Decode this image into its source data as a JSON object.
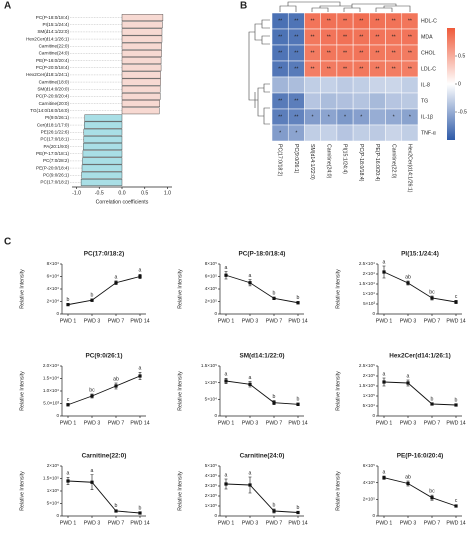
{
  "chart_data": [
    {
      "type": "bar",
      "orientation": "horizontal",
      "panel_label": "A",
      "x_label": "Correlation coefficients",
      "categories": [
        "PC(P-18:0/18:4)",
        "PI(15:1/24:4)",
        "SM(d14:1/22:0)",
        "Hex2Cer(d14:1/26:1)",
        "Carnitine(22:0)",
        "Carnitine(24:0)",
        "PE(P-16:0/20:4)",
        "PC(P-20:0/18:4)",
        "Hex2Cer(d18:1/24:1)",
        "Carnitine(18:0)",
        "SM(d14:0/20:0)",
        "PC(P-20:0/20:4)",
        "Carnitine(20:0)",
        "TG(14:0/16:0/16:0)",
        "PI(9:0/26:1)",
        "Cer(d18:1/17:0)",
        "PE(26:1/22:6)",
        "PC(17:0/18:1)",
        "PA(20:1/9:0)",
        "PE(P-17:0/18:1)",
        "PC(7:0/28:2)",
        "PE(P-20:0/18:4)",
        "PC(9:0/26:1)",
        "PC(17:0/18:2)"
      ],
      "values": [
        0.9,
        0.89,
        0.88,
        0.88,
        0.87,
        0.87,
        0.86,
        0.86,
        0.85,
        0.85,
        0.84,
        0.84,
        0.83,
        0.82,
        -0.82,
        -0.83,
        -0.84,
        -0.84,
        -0.85,
        -0.86,
        -0.87,
        -0.88,
        -0.89,
        -0.9
      ],
      "positive_color": "#f7d9d2",
      "negative_color": "#a9dfe6",
      "xlim": [
        -1.1,
        1.1
      ],
      "xticks": [
        {
          "value": -1,
          "label": "-1.0"
        },
        {
          "value": -0.5,
          "label": "-0.5"
        },
        {
          "value": 0,
          "label": "0.0"
        },
        {
          "value": 0.5,
          "label": "0.5"
        },
        {
          "value": 1,
          "label": "1.0"
        }
      ]
    },
    {
      "type": "heatmap",
      "panel_label": "B",
      "rows": [
        "HDL-C",
        "MDA",
        "CHOL",
        "LDL-C",
        "IL-8",
        "TG",
        "IL-1β",
        "TNF-α"
      ],
      "columns": [
        "PC(17:0/18:2)",
        "PC(9:0/26:1)",
        "SM(d14:1/22:0)",
        "Carnitine(24:0)",
        "PI(15:1/24:4)",
        "PC(P-18:0/18:4)",
        "PE(P-16:0/20:4)",
        "Carnitine(22:0)",
        "Hex2Cer(d14:1/26:1)"
      ],
      "values": [
        [
          -0.86,
          -0.84,
          0.84,
          0.86,
          0.85,
          0.88,
          0.86,
          0.85,
          0.83
        ],
        [
          -0.85,
          -0.83,
          0.82,
          0.84,
          0.86,
          0.85,
          0.84,
          0.83,
          0.84
        ],
        [
          -0.84,
          -0.82,
          0.8,
          0.83,
          0.82,
          0.84,
          0.82,
          0.81,
          0.8
        ],
        [
          -0.83,
          -0.8,
          0.78,
          0.8,
          0.81,
          0.82,
          0.8,
          0.79,
          0.78
        ],
        [
          -0.45,
          -0.4,
          -0.3,
          -0.28,
          -0.32,
          -0.3,
          -0.26,
          -0.25,
          -0.3
        ],
        [
          -0.8,
          -0.78,
          -0.35,
          -0.4,
          -0.38,
          -0.36,
          -0.42,
          -0.35,
          -0.33
        ],
        [
          -0.78,
          -0.75,
          -0.6,
          -0.55,
          -0.62,
          -0.58,
          -0.5,
          -0.52,
          -0.56
        ],
        [
          -0.6,
          -0.55,
          -0.3,
          -0.28,
          -0.35,
          -0.3,
          -0.32,
          -0.26,
          -0.3
        ]
      ],
      "significance": [
        [
          "**",
          "**",
          "**",
          "**",
          "**",
          "**",
          "**",
          "**",
          "**"
        ],
        [
          "**",
          "**",
          "**",
          "**",
          "**",
          "**",
          "**",
          "**",
          "**"
        ],
        [
          "**",
          "**",
          "**",
          "**",
          "**",
          "**",
          "**",
          "**",
          "**"
        ],
        [
          "**",
          "**",
          "**",
          "**",
          "**",
          "**",
          "**",
          "**",
          "**"
        ],
        [
          null,
          null,
          null,
          null,
          null,
          null,
          null,
          null,
          null
        ],
        [
          "**",
          "**",
          null,
          null,
          null,
          null,
          null,
          null,
          null
        ],
        [
          "**",
          "**",
          "*",
          "*",
          "*",
          "*",
          null,
          "*",
          "*"
        ],
        [
          "*",
          "*",
          null,
          null,
          null,
          null,
          null,
          null,
          null
        ]
      ],
      "colormap": [
        "#2e5aa8",
        "#ffffff",
        "#ef5a3a"
      ],
      "clim": [
        -1,
        1
      ],
      "colorbar_ticks": [
        0.5,
        0,
        -0.5
      ]
    },
    {
      "type": "line",
      "panel_label": "C",
      "title": "PC(17:0/18:2)",
      "y_label": "Relative Intensity",
      "color": "#111111",
      "categories": [
        "PWD 1",
        "PWD 3",
        "PWD 7",
        "PWD 14"
      ],
      "values": [
        15000,
        22000,
        50000,
        60000
      ],
      "errors": [
        1500,
        2000,
        3000,
        3500
      ],
      "significance_letters": [
        "b",
        "b",
        "a",
        "a"
      ],
      "ylim": [
        0,
        80000
      ],
      "yticks": [
        0,
        {
          "value": 20000,
          "label": "2×10⁴"
        },
        {
          "value": 40000,
          "label": "4×10⁴"
        },
        {
          "value": 60000,
          "label": "6×10⁴"
        },
        {
          "value": 80000,
          "label": "8×10⁴"
        }
      ]
    },
    {
      "type": "line",
      "title": "PC(P-18:0/18:4)",
      "y_label": "Relative Intensity",
      "color": "#111111",
      "categories": [
        "PWD 1",
        "PWD 3",
        "PWD 7",
        "PWD 14"
      ],
      "values": [
        620000,
        500000,
        250000,
        180000
      ],
      "errors": [
        60000,
        50000,
        20000,
        20000
      ],
      "significance_letters": [
        "a",
        "a",
        "b",
        "b"
      ],
      "ylim": [
        0,
        800000
      ],
      "yticks": [
        0,
        {
          "value": 200000,
          "label": "2×10⁵"
        },
        {
          "value": 400000,
          "label": "4×10⁵"
        },
        {
          "value": 600000,
          "label": "6×10⁵"
        },
        {
          "value": 800000,
          "label": "8×10⁵"
        }
      ]
    },
    {
      "type": "line",
      "title": "PI(15:1/24:4)",
      "y_label": "Relative Intensity",
      "color": "#111111",
      "categories": [
        "PWD 1",
        "PWD 3",
        "PWD 7",
        "PWD 14"
      ],
      "values": [
        21000,
        15500,
        8000,
        6000
      ],
      "errors": [
        3000,
        1000,
        1000,
        800
      ],
      "significance_letters": [
        "a",
        "ab",
        "bc",
        "c"
      ],
      "ylim": [
        0,
        25000
      ],
      "yticks": [
        0,
        {
          "value": 5000,
          "label": "5×10³"
        },
        {
          "value": 10000,
          "label": "1×10⁴"
        },
        {
          "value": 15000,
          "label": "1.5×10⁴"
        },
        {
          "value": 20000,
          "label": "2×10⁴"
        },
        {
          "value": 25000,
          "label": "2.5×10⁴"
        }
      ]
    },
    {
      "type": "line",
      "title": "PC(9:0/26:1)",
      "y_label": "Relative Intensity",
      "color": "#111111",
      "categories": [
        "PWD 1",
        "PWD 3",
        "PWD 7",
        "PWD 14"
      ],
      "values": [
        4500,
        8000,
        12000,
        16000
      ],
      "errors": [
        500,
        800,
        1200,
        1500
      ],
      "significance_letters": [
        "c",
        "bc",
        "ab",
        "a"
      ],
      "ylim": [
        0,
        20000
      ],
      "yticks": [
        0,
        {
          "value": 5000,
          "label": "5.0×10³"
        },
        {
          "value": 10000,
          "label": "1.0×10⁴"
        },
        {
          "value": 15000,
          "label": "1.5×10⁴"
        },
        {
          "value": 20000,
          "label": "2.0×10⁴"
        }
      ]
    },
    {
      "type": "line",
      "title": "SM(d14:1/22:0)",
      "y_label": "Relative Intensity",
      "color": "#111111",
      "categories": [
        "PWD 1",
        "PWD 3",
        "PWD 7",
        "PWD 14"
      ],
      "values": [
        105000,
        95000,
        40000,
        35000
      ],
      "errors": [
        8000,
        8000,
        6000,
        4000
      ],
      "significance_letters": [
        "a",
        "a",
        "b",
        "b"
      ],
      "ylim": [
        0,
        150000
      ],
      "yticks": [
        0,
        {
          "value": 50000,
          "label": "5×10⁴"
        },
        {
          "value": 100000,
          "label": "1×10⁵"
        },
        {
          "value": 150000,
          "label": "1.5×10⁵"
        }
      ]
    },
    {
      "type": "line",
      "title": "Hex2Cer(d14:1/26:1)",
      "y_label": "Relative Intensity",
      "color": "#111111",
      "categories": [
        "PWD 1",
        "PWD 3",
        "PWD 7",
        "PWD 14"
      ],
      "values": [
        170000,
        165000,
        60000,
        55000
      ],
      "errors": [
        20000,
        15000,
        5000,
        5000
      ],
      "significance_letters": [
        "a",
        "a",
        "b",
        "b"
      ],
      "ylim": [
        0,
        250000
      ],
      "yticks": [
        0,
        {
          "value": 50000,
          "label": "5×10⁴"
        },
        {
          "value": 100000,
          "label": "1×10⁵"
        },
        {
          "value": 150000,
          "label": "1.5×10⁵"
        },
        {
          "value": 200000,
          "label": "2×10⁵"
        },
        {
          "value": 250000,
          "label": "2.5×10⁵"
        }
      ]
    },
    {
      "type": "line",
      "title": "Carnitine(22:0)",
      "y_label": "Relative Intensity",
      "color": "#111111",
      "categories": [
        "PWD 1",
        "PWD 3",
        "PWD 7",
        "PWD 14"
      ],
      "values": [
        140000,
        135000,
        20000,
        12000
      ],
      "errors": [
        15000,
        30000,
        5000,
        3000
      ],
      "significance_letters": [
        "a",
        "a",
        "b",
        "b"
      ],
      "ylim": [
        0,
        200000
      ],
      "yticks": [
        0,
        {
          "value": 50000,
          "label": "5×10⁴"
        },
        {
          "value": 100000,
          "label": "1×10⁵"
        },
        {
          "value": 150000,
          "label": "1.5×10⁵"
        },
        {
          "value": 200000,
          "label": "2×10⁵"
        }
      ]
    },
    {
      "type": "line",
      "title": "Carnitine(24:0)",
      "y_label": "Relative Intensity",
      "color": "#111111",
      "categories": [
        "PWD 1",
        "PWD 3",
        "PWD 7",
        "PWD 14"
      ],
      "values": [
        320000,
        310000,
        50000,
        35000
      ],
      "errors": [
        50000,
        80000,
        20000,
        10000
      ],
      "significance_letters": [
        "a",
        "a",
        "b",
        "b"
      ],
      "ylim": [
        0,
        500000
      ],
      "yticks": [
        0,
        {
          "value": 100000,
          "label": "1×10⁵"
        },
        {
          "value": 200000,
          "label": "2×10⁵"
        },
        {
          "value": 300000,
          "label": "3×10⁵"
        },
        {
          "value": 400000,
          "label": "4×10⁵"
        },
        {
          "value": 500000,
          "label": "5×10⁵"
        }
      ]
    },
    {
      "type": "line",
      "title": "PE(P-16:0/20:4)",
      "y_label": "Relative Intensity",
      "color": "#111111",
      "categories": [
        "PWD 1",
        "PWD 3",
        "PWD 7",
        "PWD 14"
      ],
      "values": [
        460000,
        390000,
        220000,
        120000
      ],
      "errors": [
        20000,
        30000,
        30000,
        15000
      ],
      "significance_letters": [
        "a",
        "ab",
        "bc",
        "c"
      ],
      "ylim": [
        0,
        600000
      ],
      "yticks": [
        0,
        {
          "value": 200000,
          "label": "2×10⁵"
        },
        {
          "value": 400000,
          "label": "4×10⁵"
        },
        {
          "value": 600000,
          "label": "6×10⁵"
        }
      ]
    }
  ]
}
